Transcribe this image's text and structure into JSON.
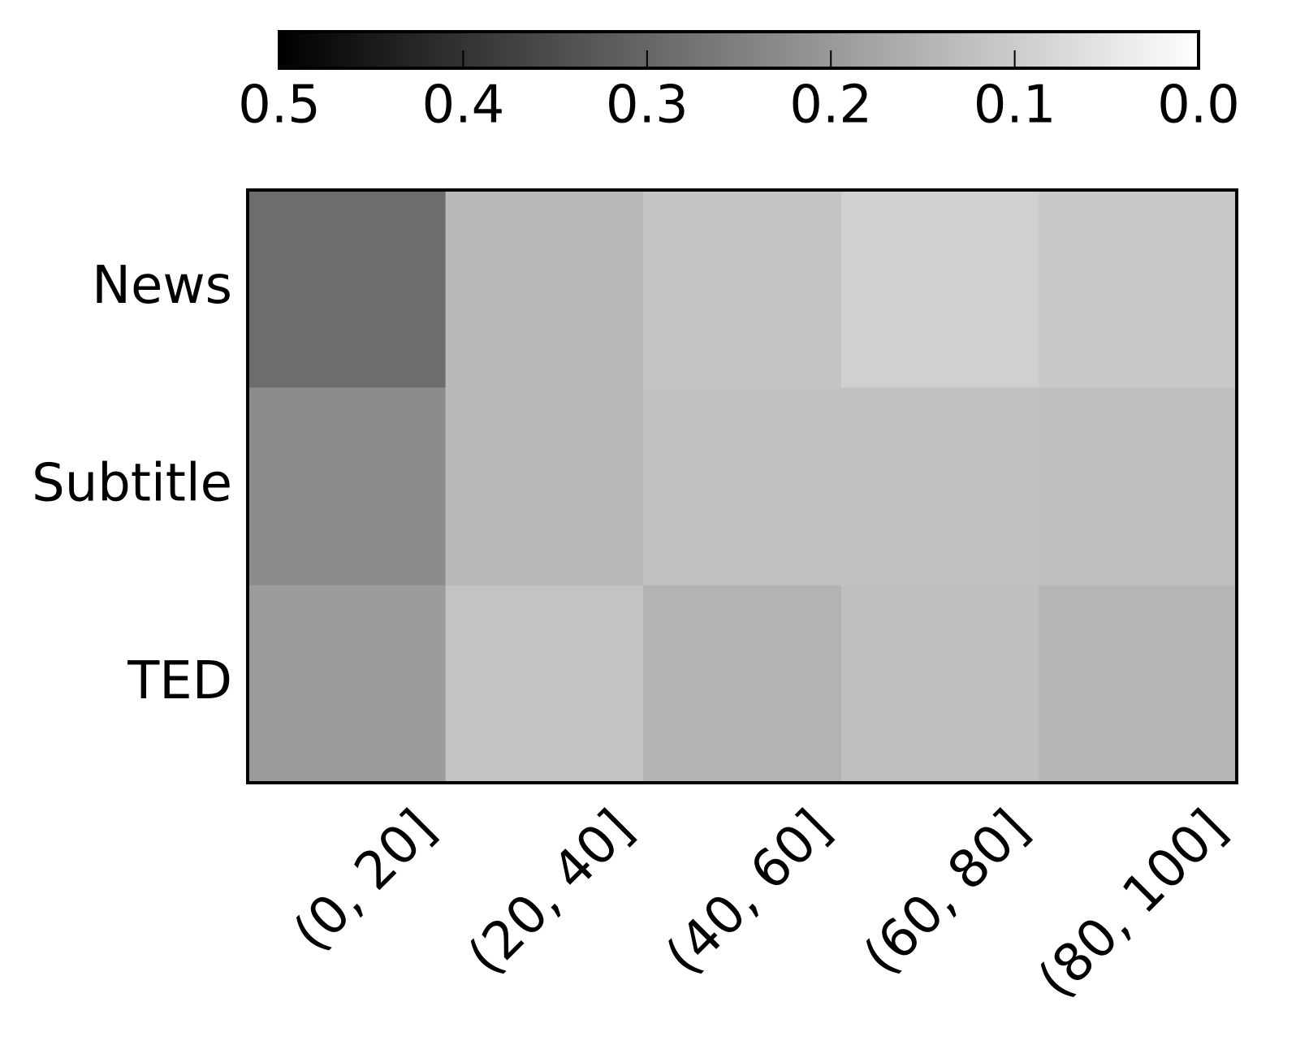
{
  "chart_data": {
    "type": "heatmap",
    "categories": [
      "(0, 20]",
      "(20, 40]",
      "(40, 60]",
      "(60, 80]",
      "(80, 100]"
    ],
    "rows": [
      "News",
      "Subtitle",
      "TED"
    ],
    "values": [
      [
        0.286,
        0.137,
        0.116,
        0.092,
        0.108
      ],
      [
        0.225,
        0.137,
        0.12,
        0.12,
        0.127
      ],
      [
        0.194,
        0.118,
        0.149,
        0.125,
        0.145
      ]
    ],
    "zlim": [
      0,
      0.5
    ],
    "cmap": [
      "#ffffff",
      "#000000"
    ],
    "colorbar_reversed": true,
    "zticks": [
      0.5,
      0.4,
      0.3,
      0.2,
      0.1,
      {
        "value": 0,
        "label": "0.0"
      }
    ]
  }
}
